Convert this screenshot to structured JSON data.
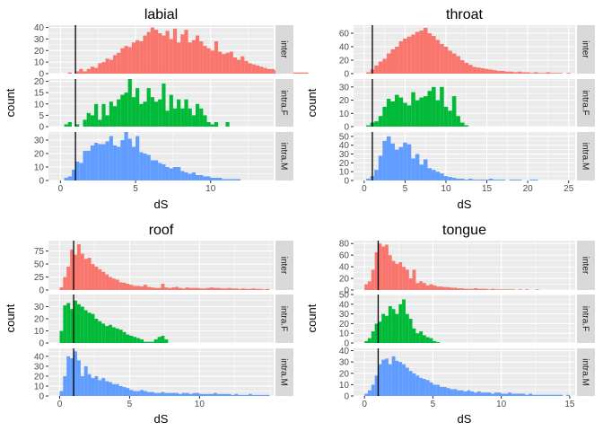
{
  "chart_data": [
    {
      "type": "histogram",
      "title": "labial",
      "xlabel": "dS",
      "ylabel": "count",
      "xlim": [
        -0.8,
        14.2
      ],
      "xticks": [
        0,
        5,
        10
      ],
      "binwidth": 0.25,
      "x_start": 0.25,
      "vline": 1.0,
      "panels": [
        {
          "strip": "inter",
          "color": "#F8766D",
          "ylim": [
            0,
            42
          ],
          "yticks": [
            0,
            10,
            20,
            30,
            40
          ],
          "counts": [
            0,
            1,
            0,
            2,
            4,
            2,
            4,
            6,
            5,
            9,
            10,
            13,
            12,
            16,
            18,
            22,
            24,
            23,
            27,
            29,
            28,
            33,
            36,
            40,
            38,
            35,
            33,
            37,
            30,
            39,
            27,
            34,
            38,
            27,
            29,
            33,
            28,
            24,
            22,
            20,
            28,
            19,
            17,
            18,
            19,
            14,
            12,
            15,
            11,
            9,
            8,
            7,
            6,
            5,
            4,
            4,
            3,
            2,
            2,
            1,
            1,
            1,
            1,
            1,
            1
          ]
        },
        {
          "strip": "intra.F",
          "color": "#00BA38",
          "ylim": [
            0,
            21
          ],
          "yticks": [
            0,
            5,
            10,
            15,
            20
          ],
          "counts": [
            1,
            2,
            0,
            1,
            0,
            3,
            6,
            5,
            10,
            3,
            10,
            5,
            11,
            9,
            12,
            14,
            15,
            21,
            13,
            17,
            10,
            11,
            17,
            13,
            11,
            12,
            19,
            7,
            14,
            8,
            12,
            8,
            12,
            8,
            5,
            10,
            8,
            5,
            2,
            1,
            2,
            0,
            0,
            2,
            0,
            0,
            0,
            0,
            0,
            0,
            0,
            0,
            0,
            0,
            0,
            0,
            0,
            0,
            0,
            0,
            0,
            0,
            0,
            0,
            0
          ]
        },
        {
          "strip": "intra.M",
          "color": "#619CFF",
          "ylim": [
            0,
            36
          ],
          "yticks": [
            0,
            10,
            20,
            30
          ],
          "counts": [
            2,
            3,
            8,
            14,
            13,
            22,
            22,
            26,
            28,
            27,
            27,
            29,
            33,
            26,
            25,
            30,
            37,
            31,
            25,
            33,
            21,
            20,
            19,
            15,
            15,
            13,
            12,
            10,
            9,
            10,
            10,
            7,
            6,
            5,
            6,
            4,
            4,
            3,
            3,
            2,
            2,
            2,
            1,
            1,
            1,
            1,
            1,
            0,
            0,
            0,
            0,
            0,
            0,
            0,
            0,
            0,
            0,
            0,
            0,
            0,
            0,
            0,
            0,
            0,
            0
          ]
        }
      ]
    },
    {
      "type": "histogram",
      "title": "throat",
      "xlabel": "dS",
      "ylabel": "count",
      "xlim": [
        -1.3,
        25.8
      ],
      "xticks": [
        0,
        5,
        10,
        15,
        20,
        25
      ],
      "binwidth": 0.5,
      "x_start": 0.25,
      "vline": 1.0,
      "panels": [
        {
          "strip": "inter",
          "color": "#F8766D",
          "ylim": [
            0,
            72
          ],
          "yticks": [
            0,
            20,
            40,
            60
          ],
          "counts": [
            2,
            6,
            12,
            18,
            22,
            30,
            36,
            40,
            48,
            52,
            55,
            58,
            62,
            64,
            68,
            60,
            56,
            50,
            44,
            40,
            34,
            30,
            26,
            20,
            16,
            13,
            10,
            9,
            8,
            7,
            6,
            5,
            4,
            4,
            3,
            3,
            2,
            3,
            2,
            2,
            1,
            2,
            1,
            1,
            2,
            1,
            1,
            1,
            0,
            1
          ]
        },
        {
          "strip": "intra.F",
          "color": "#00BA38",
          "ylim": [
            0,
            36
          ],
          "yticks": [
            0,
            10,
            20,
            30
          ],
          "counts": [
            1,
            3,
            4,
            8,
            15,
            21,
            19,
            24,
            22,
            18,
            16,
            26,
            20,
            22,
            23,
            27,
            30,
            20,
            30,
            15,
            12,
            23,
            8,
            3,
            1,
            0,
            0,
            0,
            0,
            0,
            0,
            0,
            0,
            0,
            0,
            0,
            0,
            0,
            0,
            0,
            0,
            0,
            0,
            0,
            0,
            0,
            0,
            0,
            0,
            0
          ]
        },
        {
          "strip": "intra.M",
          "color": "#619CFF",
          "ylim": [
            0,
            55
          ],
          "yticks": [
            0,
            10,
            20,
            30,
            40,
            50
          ],
          "counts": [
            2,
            5,
            12,
            28,
            45,
            50,
            42,
            35,
            38,
            43,
            41,
            25,
            30,
            18,
            24,
            14,
            12,
            10,
            8,
            5,
            4,
            3,
            2,
            2,
            1,
            2,
            1,
            1,
            1,
            1,
            2,
            1,
            1,
            1,
            0,
            1,
            1,
            1,
            0,
            0,
            1,
            1,
            0,
            0,
            0,
            0,
            0,
            0,
            0,
            0
          ]
        }
      ]
    },
    {
      "type": "histogram",
      "title": "roof",
      "xlabel": "dS",
      "ylabel": "count",
      "xlim": [
        -0.8,
        15.3
      ],
      "xticks": [
        0,
        5,
        10
      ],
      "binwidth": 0.25,
      "x_start": 0.0,
      "vline": 1.0,
      "panels": [
        {
          "strip": "inter",
          "color": "#F8766D",
          "ylim": [
            0,
            95
          ],
          "yticks": [
            0,
            25,
            50,
            75
          ],
          "counts": [
            5,
            25,
            45,
            78,
            68,
            88,
            70,
            60,
            62,
            50,
            45,
            40,
            35,
            30,
            25,
            22,
            20,
            15,
            14,
            12,
            10,
            8,
            8,
            7,
            10,
            6,
            5,
            4,
            4,
            12,
            5,
            4,
            5,
            6,
            4,
            3,
            5,
            4,
            4,
            4,
            3,
            3,
            4,
            5,
            4,
            4,
            3,
            3,
            4,
            3,
            3,
            2,
            3,
            2,
            2,
            3,
            2,
            2,
            1,
            2
          ]
        },
        {
          "strip": "intra.F",
          "color": "#00BA38",
          "ylim": [
            0,
            40
          ],
          "yticks": [
            0,
            10,
            20,
            30
          ],
          "counts": [
            10,
            31,
            33,
            28,
            35,
            32,
            30,
            27,
            25,
            24,
            20,
            18,
            16,
            14,
            15,
            13,
            12,
            11,
            9,
            7,
            6,
            5,
            4,
            3,
            1,
            1,
            1,
            3,
            5,
            6,
            3,
            0,
            0,
            0,
            0,
            0,
            0,
            0,
            0,
            0,
            0,
            0,
            0,
            0,
            0,
            0,
            0,
            0,
            0,
            0,
            0,
            0,
            0,
            0,
            0,
            0,
            0,
            0,
            0,
            0
          ]
        },
        {
          "strip": "intra.M",
          "color": "#619CFF",
          "ylim": [
            0,
            48
          ],
          "yticks": [
            0,
            10,
            20,
            30,
            40
          ],
          "counts": [
            5,
            20,
            40,
            38,
            45,
            36,
            20,
            30,
            22,
            18,
            20,
            16,
            18,
            15,
            14,
            12,
            12,
            10,
            9,
            8,
            6,
            5,
            5,
            6,
            5,
            4,
            4,
            3,
            3,
            4,
            3,
            3,
            3,
            3,
            2,
            3,
            3,
            2,
            3,
            3,
            2,
            2,
            2,
            2,
            3,
            2,
            2,
            2,
            2,
            1,
            2,
            1,
            1,
            1,
            2,
            1,
            1,
            1,
            1,
            1
          ]
        }
      ]
    },
    {
      "type": "histogram",
      "title": "tongue",
      "xlabel": "dS",
      "ylabel": "count",
      "xlim": [
        -0.8,
        15.4
      ],
      "xticks": [
        0,
        5,
        10,
        15
      ],
      "binwidth": 0.25,
      "x_start": 0.0,
      "vline": 1.0,
      "panels": [
        {
          "strip": "inter",
          "color": "#F8766D",
          "ylim": [
            0,
            85
          ],
          "yticks": [
            0,
            20,
            40,
            60,
            80
          ],
          "counts": [
            10,
            15,
            35,
            65,
            80,
            75,
            78,
            60,
            50,
            45,
            48,
            40,
            35,
            20,
            35,
            12,
            15,
            12,
            8,
            10,
            8,
            6,
            6,
            5,
            5,
            4,
            4,
            3,
            3,
            2,
            2,
            2,
            3,
            2,
            2,
            2,
            1,
            2,
            1,
            1,
            1,
            1,
            1,
            1,
            0,
            1,
            0,
            1,
            0,
            0,
            1,
            0,
            0,
            0,
            0,
            0,
            0,
            0,
            0,
            0
          ]
        },
        {
          "strip": "intra.F",
          "color": "#00BA38",
          "ylim": [
            0,
            50
          ],
          "yticks": [
            0,
            10,
            20,
            30,
            40,
            50
          ],
          "counts": [
            2,
            5,
            12,
            20,
            22,
            30,
            28,
            38,
            35,
            30,
            40,
            45,
            30,
            25,
            15,
            10,
            12,
            8,
            6,
            5,
            2,
            1,
            0,
            0,
            0,
            0,
            0,
            0,
            0,
            0,
            0,
            0,
            0,
            0,
            0,
            0,
            0,
            0,
            0,
            0,
            0,
            0,
            0,
            0,
            0,
            0,
            0,
            0,
            0,
            0,
            0,
            0,
            0,
            0,
            0,
            0,
            0,
            0,
            0,
            0
          ]
        },
        {
          "strip": "intra.M",
          "color": "#619CFF",
          "ylim": [
            0,
            42
          ],
          "yticks": [
            0,
            10,
            20,
            30,
            40
          ],
          "counts": [
            2,
            5,
            10,
            18,
            28,
            32,
            33,
            28,
            35,
            31,
            30,
            28,
            25,
            22,
            20,
            18,
            16,
            15,
            14,
            12,
            10,
            10,
            8,
            8,
            7,
            6,
            6,
            5,
            5,
            4,
            5,
            4,
            3,
            4,
            3,
            3,
            3,
            2,
            3,
            3,
            2,
            2,
            3,
            2,
            2,
            2,
            2,
            1,
            2,
            1,
            1,
            1,
            1,
            1,
            1,
            1,
            1,
            1,
            0,
            1
          ]
        }
      ]
    }
  ]
}
